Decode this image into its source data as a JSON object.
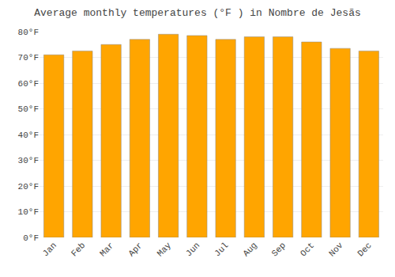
{
  "chart_data": {
    "type": "bar",
    "title": "Average monthly temperatures (°F ) in Nombre de Jesãs",
    "categories": [
      "Jan",
      "Feb",
      "Mar",
      "Apr",
      "May",
      "Jun",
      "Jul",
      "Aug",
      "Sep",
      "Oct",
      "Nov",
      "Dec"
    ],
    "values": [
      71.0,
      72.5,
      75.0,
      77.0,
      79.0,
      78.5,
      77.0,
      78.0,
      78.0,
      76.0,
      73.5,
      72.5
    ],
    "color": "#FFA500",
    "ylim": [
      0,
      80
    ],
    "yticks": [
      {
        "value": 0,
        "label": "0°F"
      },
      {
        "value": 10,
        "label": "10°F"
      },
      {
        "value": 20,
        "label": "20°F"
      },
      {
        "value": 30,
        "label": "30°F"
      },
      {
        "value": 40,
        "label": "40°F"
      },
      {
        "value": 50,
        "label": "50°F"
      },
      {
        "value": 60,
        "label": "60°F"
      },
      {
        "value": 70,
        "label": "70°F"
      },
      {
        "value": 80,
        "label": "80°F"
      }
    ],
    "grid": true
  }
}
